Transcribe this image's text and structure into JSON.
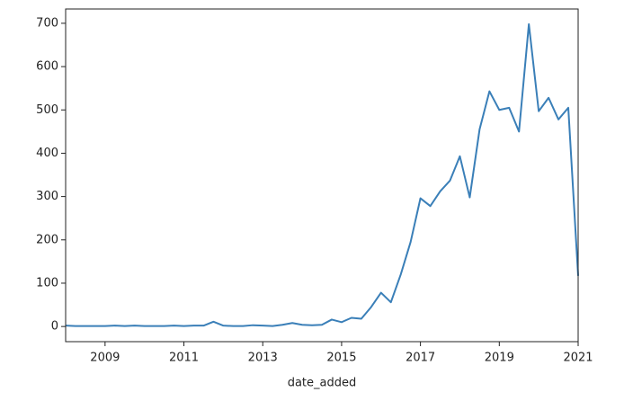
{
  "chart_data": {
    "type": "line",
    "x_label": "date_added",
    "x": [
      2008,
      2008.25,
      2008.5,
      2008.75,
      2009,
      2009.25,
      2009.5,
      2009.75,
      2010,
      2010.25,
      2010.5,
      2010.75,
      2011,
      2011.25,
      2011.5,
      2011.75,
      2012,
      2012.25,
      2012.5,
      2012.75,
      2013,
      2013.25,
      2013.5,
      2013.75,
      2014,
      2014.25,
      2014.5,
      2014.75,
      2015,
      2015.25,
      2015.5,
      2015.75,
      2016,
      2016.25,
      2016.5,
      2016.75,
      2017,
      2017.25,
      2017.5,
      2017.75,
      2018,
      2018.25,
      2018.5,
      2018.75,
      2019,
      2019.25,
      2019.5,
      2019.75,
      2020,
      2020.25,
      2020.5,
      2020.75,
      2021
    ],
    "series": [
      {
        "color": "#3a7fb8",
        "values": [
          2,
          1,
          1,
          1,
          1,
          2,
          1,
          2,
          1,
          1,
          1,
          2,
          1,
          2,
          2,
          11,
          2,
          1,
          1,
          3,
          2,
          1,
          4,
          8,
          4,
          3,
          4,
          16,
          10,
          20,
          18,
          45,
          78,
          56,
          120,
          195,
          296,
          278,
          312,
          337,
          393,
          298,
          455,
          543,
          500,
          505,
          450,
          698,
          497,
          528,
          478,
          505,
          117
        ]
      }
    ],
    "xlim": [
      2008,
      2021
    ],
    "xticks": [
      2009,
      2011,
      2013,
      2015,
      2017,
      2019,
      2021
    ],
    "ylim": [
      -35,
      733
    ],
    "yticks": [
      0,
      100,
      200,
      300,
      400,
      500,
      600,
      700
    ]
  }
}
